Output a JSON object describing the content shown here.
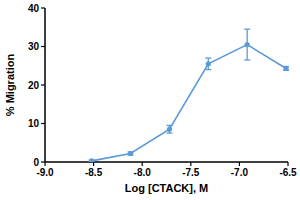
{
  "chart_data": {
    "type": "line",
    "x_label": "Log [CTACK], M",
    "y_label": "% Migration",
    "x": [
      -8.52,
      -8.12,
      -7.72,
      -7.32,
      -6.92,
      -6.52
    ],
    "values": [
      0.3,
      2.2,
      8.5,
      25.5,
      30.5,
      24.3
    ],
    "errors": [
      0.2,
      0.4,
      1.0,
      1.5,
      4.0,
      0.5
    ],
    "color": "#5b9bd5",
    "marker": "circle",
    "xlim": [
      -9,
      -6.5
    ],
    "xticks": [
      {
        "value": -9,
        "label": "-9.0"
      },
      {
        "value": -8.5,
        "label": "-8.5"
      },
      {
        "value": -8,
        "label": "-8.0"
      },
      {
        "value": -7.5,
        "label": "-7.5"
      },
      {
        "value": -7,
        "label": "-7.0"
      },
      {
        "value": -6.5,
        "label": "-6.5"
      }
    ],
    "ylim": [
      0,
      40
    ],
    "yticks": [
      0,
      10,
      20,
      30,
      40
    ],
    "grid": false
  }
}
